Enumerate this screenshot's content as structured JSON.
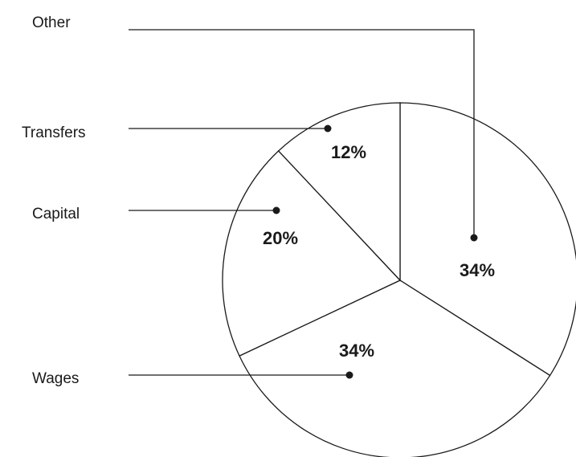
{
  "chart_data": {
    "type": "pie",
    "title": "",
    "slices": [
      {
        "name": "Other",
        "value": 34,
        "label": "34%"
      },
      {
        "name": "Wages",
        "value": 34,
        "label": "34%"
      },
      {
        "name": "Capital",
        "value": 20,
        "label": "20%"
      },
      {
        "name": "Transfers",
        "value": 12,
        "label": "12%"
      }
    ],
    "start_angle": "12 o'clock",
    "direction": "clockwise",
    "legend": "leader-lines-left",
    "colors": {
      "fill": "#ffffff",
      "stroke": "#1a1a1a"
    }
  }
}
